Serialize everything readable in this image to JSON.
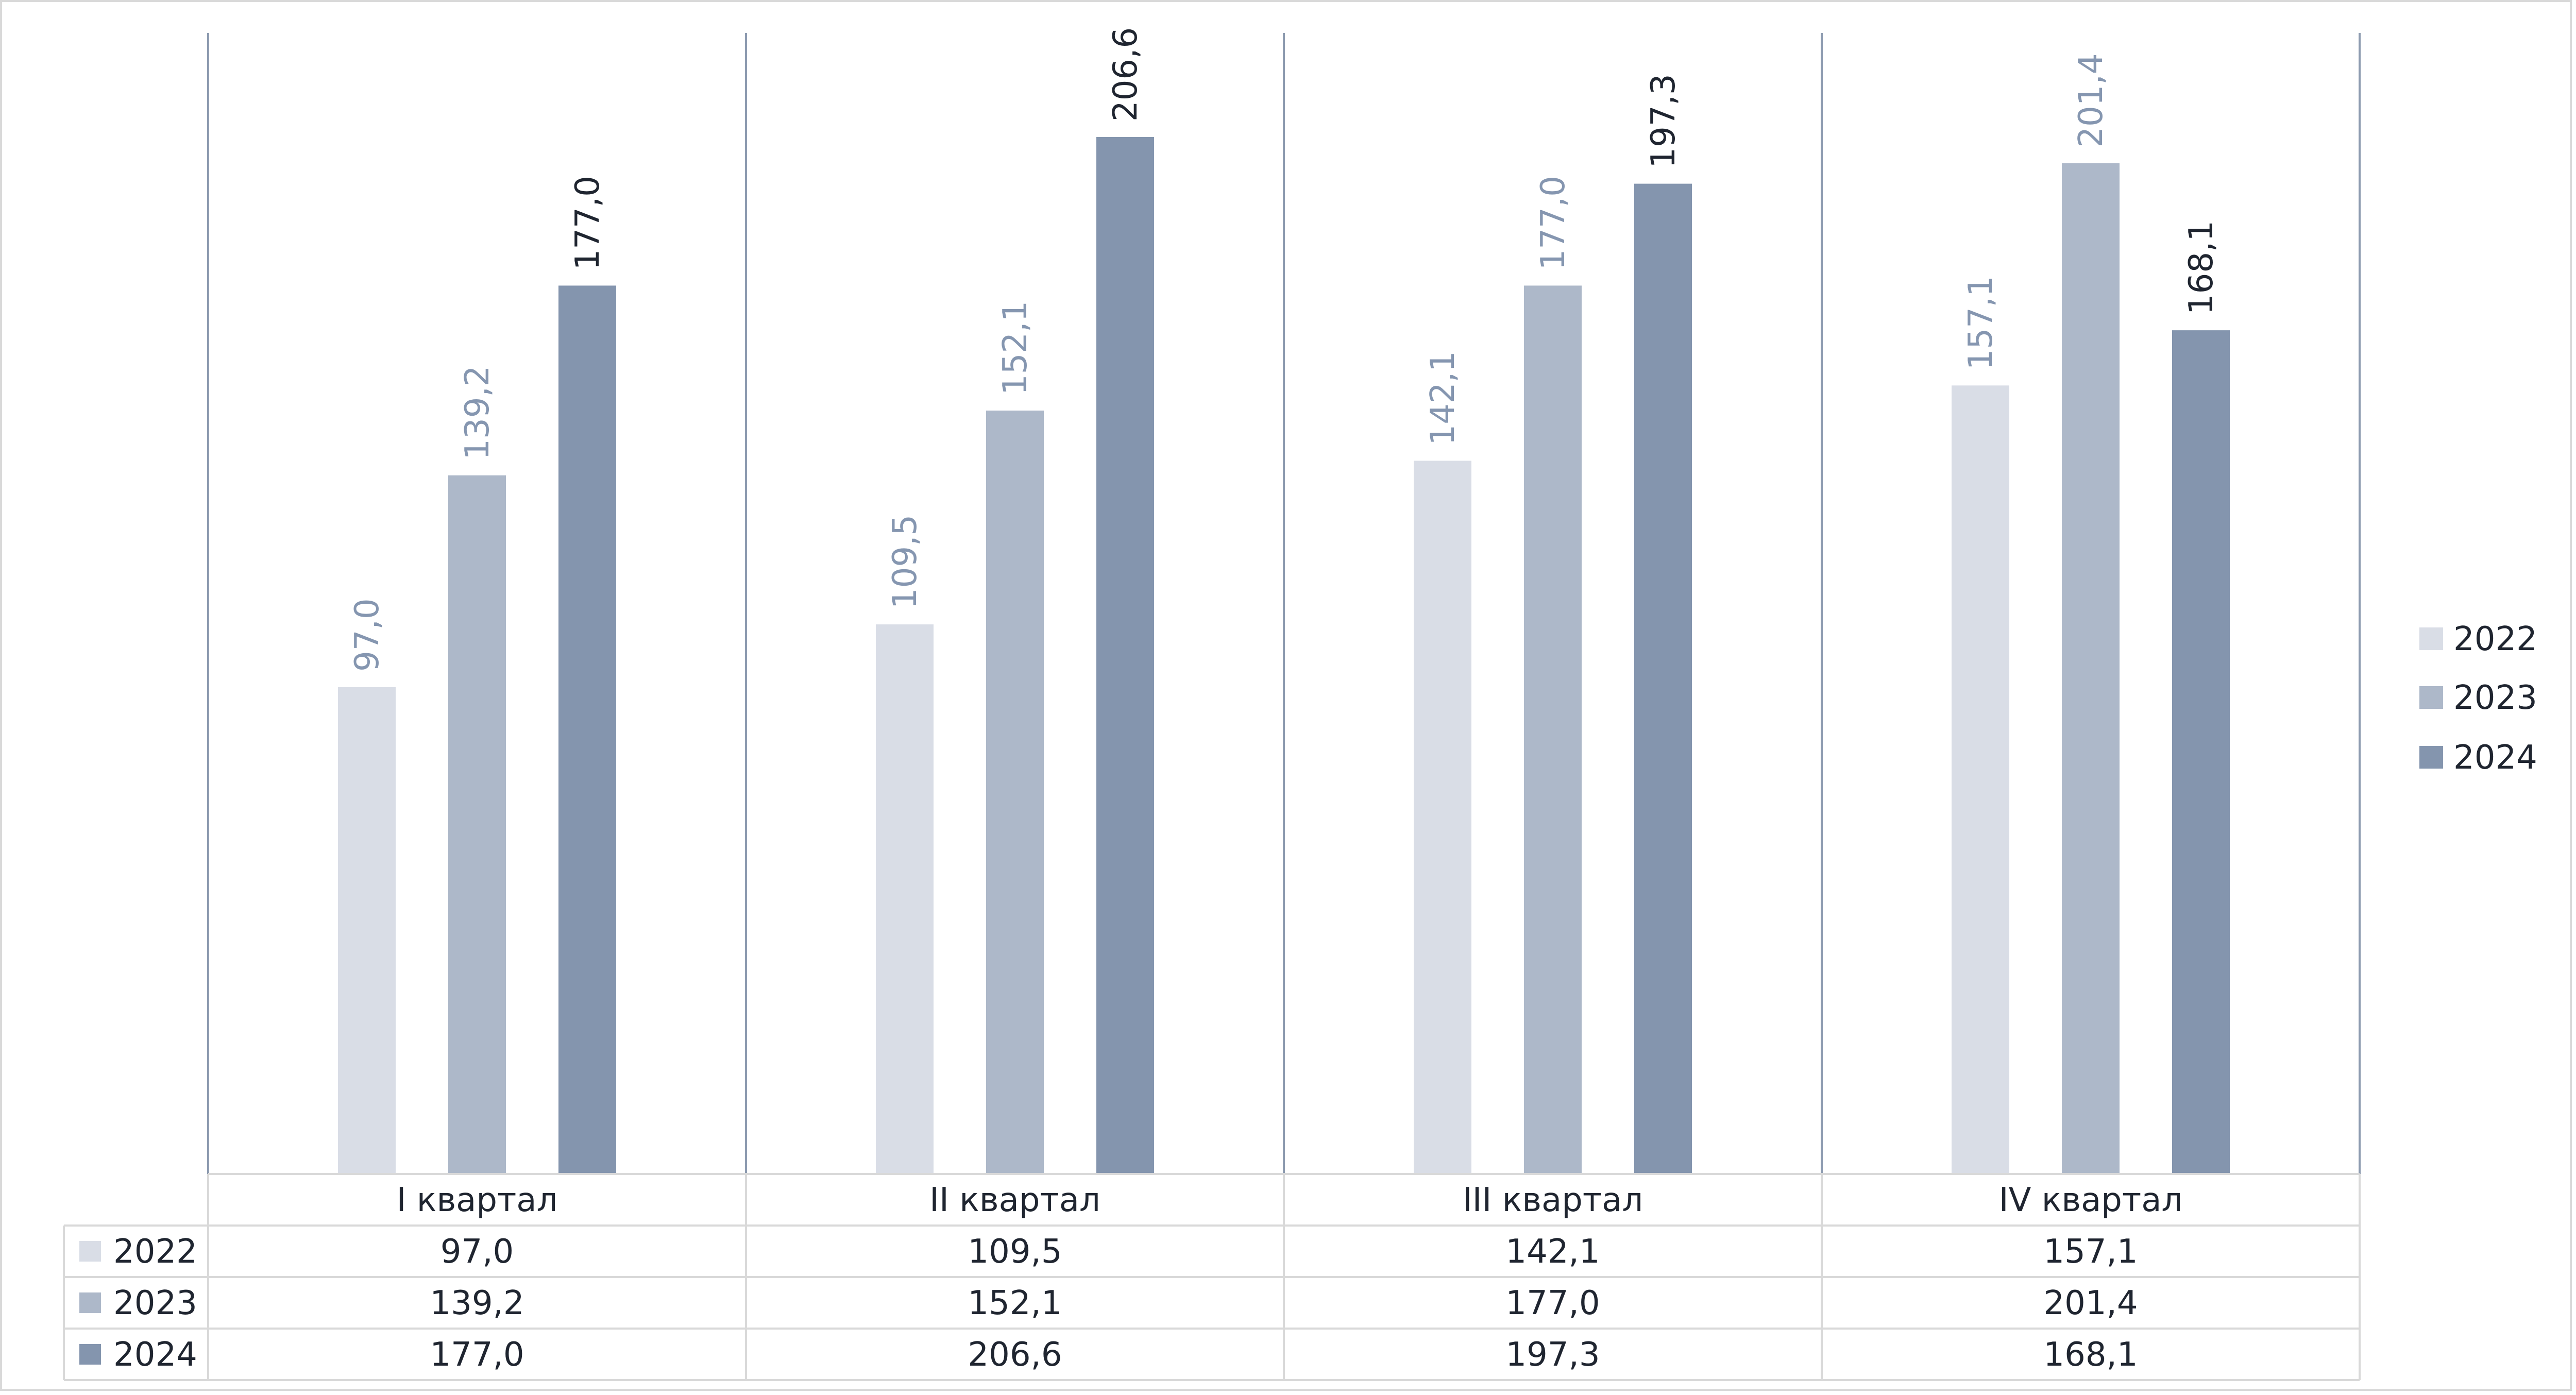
{
  "chart_data": {
    "type": "bar",
    "title": "",
    "categories": [
      "I квартал",
      "II квартал",
      "III квартал",
      "IV квартал"
    ],
    "series": [
      {
        "name": "2022",
        "color": "#d9dde6",
        "label_color": "#8596b0",
        "values": [
          97.0,
          109.5,
          142.1,
          157.1
        ],
        "labels": [
          "97,0",
          "109,5",
          "142,1",
          "157,1"
        ],
        "table": [
          "97,0",
          "109,5",
          "142,1",
          "157,1"
        ]
      },
      {
        "name": "2023",
        "color": "#adb8c9",
        "label_color": "#8596b0",
        "values": [
          139.2,
          152.1,
          177.0,
          201.4
        ],
        "labels": [
          "139,2",
          "152,1",
          "177,0",
          "201,4"
        ],
        "table": [
          "139,2",
          "152,1",
          "177,0",
          "201,4"
        ]
      },
      {
        "name": "2024",
        "color": "#8495ae",
        "label_color": "#1f2530",
        "values": [
          177.0,
          206.6,
          197.3,
          168.1
        ],
        "labels": [
          "177,0",
          "206,6",
          "197,3",
          "168,1"
        ],
        "table": [
          "177,0",
          "206,6",
          "197,3",
          "168,1"
        ]
      }
    ],
    "ylim": [
      0,
      206.6
    ],
    "grid": false,
    "legend": "right",
    "data_table": true
  }
}
